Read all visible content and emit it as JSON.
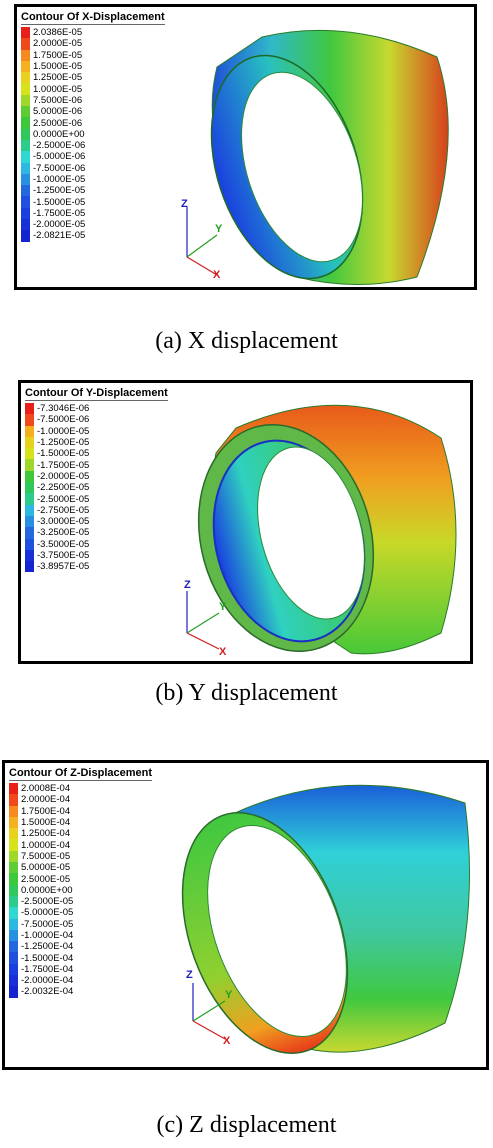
{
  "panels": [
    {
      "title": "Contour Of X-Displacement",
      "caption": "(a) X displacement",
      "labels": [
        "2.0386E-05",
        "2.0000E-05",
        "1.7500E-05",
        "1.5000E-05",
        "1.2500E-05",
        "1.0000E-05",
        "7.5000E-06",
        "5.0000E-06",
        "2.5000E-06",
        "0.0000E+00",
        "-2.5000E-06",
        "-5.0000E-06",
        "-7.5000E-06",
        "-1.0000E-05",
        "-1.2500E-05",
        "-1.5000E-05",
        "-1.7500E-05",
        "-2.0000E-05",
        "-2.0821E-05"
      ],
      "axes": {
        "z": "Z",
        "y": "Y",
        "x": "X"
      }
    },
    {
      "title": "Contour Of Y-Displacement",
      "caption": "(b) Y displacement",
      "labels": [
        "-7.3046E-06",
        "-7.5000E-06",
        "-1.0000E-05",
        "-1.2500E-05",
        "-1.5000E-05",
        "-1.7500E-05",
        "-2.0000E-05",
        "-2.2500E-05",
        "-2.5000E-05",
        "-2.7500E-05",
        "-3.0000E-05",
        "-3.2500E-05",
        "-3.5000E-05",
        "-3.7500E-05",
        "-3.8957E-05"
      ],
      "axes": {
        "z": "Z",
        "y": "Y",
        "x": "X"
      }
    },
    {
      "title": "Contour Of Z-Displacement",
      "caption": "(c) Z displacement",
      "labels": [
        "2.0008E-04",
        "2.0000E-04",
        "1.7500E-04",
        "1.5000E-04",
        "1.2500E-04",
        "1.0000E-04",
        "7.5000E-05",
        "5.0000E-05",
        "2.5000E-05",
        "0.0000E+00",
        "-2.5000E-05",
        "-5.0000E-05",
        "-7.5000E-05",
        "-1.0000E-04",
        "-1.2500E-04",
        "-1.5000E-04",
        "-1.7500E-04",
        "-2.0000E-04",
        "-2.0032E-04"
      ],
      "axes": {
        "z": "Z",
        "y": "Y",
        "x": "X"
      }
    }
  ],
  "colors": {
    "red": "#e8201a",
    "orange": "#f58a1f",
    "yellow": "#d8e21a",
    "green": "#3cc83a",
    "cyan": "#2fd8d0",
    "blue": "#1a3fe0",
    "frame": "#000000"
  }
}
